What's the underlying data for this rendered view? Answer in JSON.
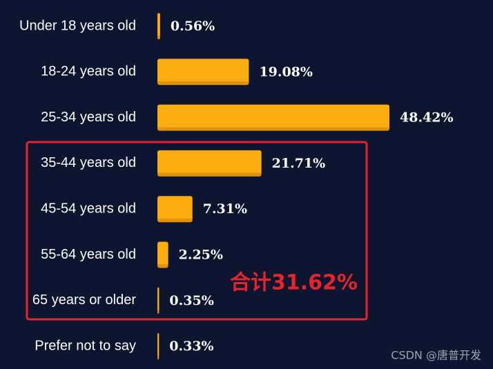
{
  "chart_data": {
    "type": "hbar",
    "categories": [
      "Under 18 years old",
      "18-24 years old",
      "25-34 years old",
      "35-44 years old",
      "45-54 years old",
      "55-64 years old",
      "65 years or older",
      "Prefer not to say"
    ],
    "values": [
      0.56,
      19.08,
      48.42,
      21.71,
      7.31,
      2.25,
      0.35,
      0.33
    ],
    "value_labels": [
      "0.56%",
      "19.08%",
      "48.42%",
      "21.71%",
      "7.31%",
      "2.25%",
      "0.35%",
      "0.33%"
    ],
    "color": "#fbad10",
    "annotation": "合计31.62%",
    "watermark": "CSDN @唐普开发"
  }
}
